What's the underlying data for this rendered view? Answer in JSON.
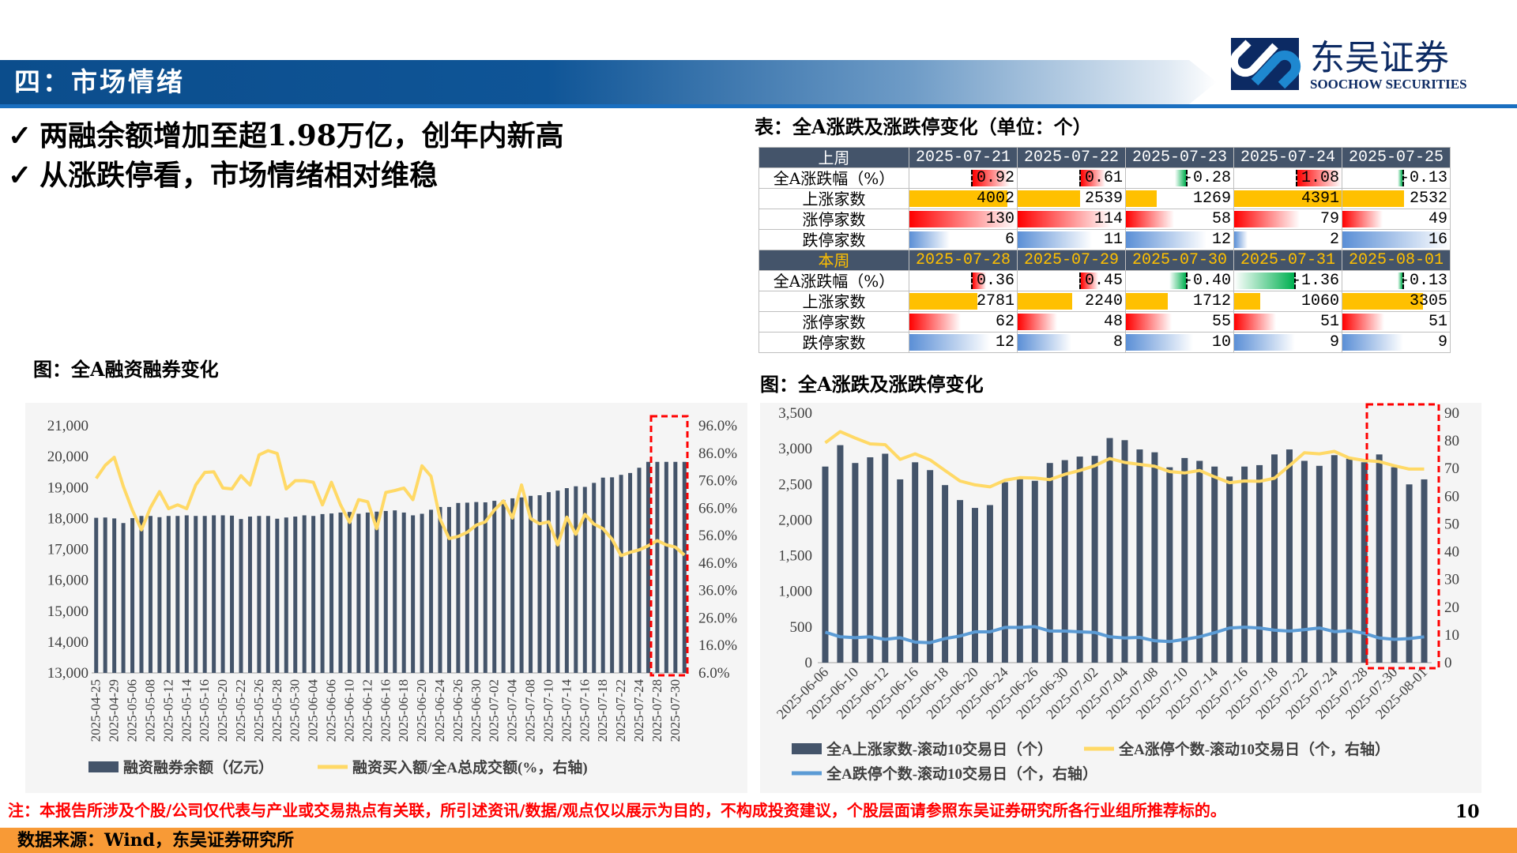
{
  "header": {
    "title": "四：市场情绪",
    "brand_cn": "东吴证券",
    "brand_en": "SOOCHOW SECURITIES",
    "brand_colors": {
      "dark": "#0c2a63",
      "light": "#1e88d0"
    }
  },
  "bullets": [
    {
      "icon": "check-icon",
      "text": "两融余额增加至超1.98万亿，创年内新高"
    },
    {
      "icon": "check-icon",
      "text": "从涨跌停看，市场情绪相对维稳"
    }
  ],
  "table": {
    "title": "表：全A涨跌及涨跌停变化（单位：个）",
    "row_labels": [
      "全A涨跌幅（%）",
      "上涨家数",
      "涨停家数",
      "跌停家数"
    ],
    "colors": {
      "header_bg": "#44546a",
      "current_week_text": "#ffc000",
      "up_bar": "#ffc000",
      "pos_pct": "#ff0000",
      "neg_pct": "#00b050",
      "limit_up": "#ff0000",
      "limit_down": "#5b8fd6"
    },
    "weeks": [
      {
        "label": "上周",
        "dates": [
          "2025-07-21",
          "2025-07-22",
          "2025-07-23",
          "2025-07-24",
          "2025-07-25"
        ],
        "pct": [
          "0.92",
          "0.61",
          "-0.28",
          "1.08",
          "-0.13"
        ],
        "up": [
          "4002",
          "2539",
          "1269",
          "4391",
          "2532"
        ],
        "limit_up": [
          "130",
          "114",
          "58",
          "79",
          "49"
        ],
        "limit_down": [
          "6",
          "11",
          "12",
          "2",
          "16"
        ]
      },
      {
        "label": "本周",
        "dates": [
          "2025-07-28",
          "2025-07-29",
          "2025-07-30",
          "2025-07-31",
          "2025-08-01"
        ],
        "pct": [
          "0.36",
          "0.45",
          "-0.40",
          "-1.36",
          "-0.13"
        ],
        "up": [
          "2781",
          "2240",
          "1712",
          "1060",
          "3305"
        ],
        "limit_up": [
          "62",
          "48",
          "55",
          "51",
          "51"
        ],
        "limit_down": [
          "12",
          "8",
          "10",
          "9",
          "9"
        ]
      }
    ]
  },
  "chart_data": [
    {
      "type": "bar+line",
      "title": "图：全A融资融券变化",
      "x_tick_labels": [
        "2025-04-25",
        "2025-04-29",
        "2025-05-06",
        "2025-05-08",
        "2025-05-12",
        "2025-05-14",
        "2025-05-16",
        "2025-05-20",
        "2025-05-22",
        "2025-05-26",
        "2025-05-28",
        "2025-05-30",
        "2025-06-04",
        "2025-06-06",
        "2025-06-10",
        "2025-06-12",
        "2025-06-16",
        "2025-06-18",
        "2025-06-20",
        "2025-06-24",
        "2025-06-26",
        "2025-06-30",
        "2025-07-02",
        "2025-07-04",
        "2025-07-08",
        "2025-07-10",
        "2025-07-14",
        "2025-07-16",
        "2025-07-18",
        "2025-07-22",
        "2025-07-24",
        "2025-07-28",
        "2025-07-30"
      ],
      "y_left": {
        "range": [
          13000,
          21000
        ],
        "ticks": [
          "13,000",
          "14,000",
          "15,000",
          "16,000",
          "17,000",
          "18,000",
          "19,000",
          "20,000",
          "21,000"
        ]
      },
      "y_right": {
        "range": [
          6,
          96
        ],
        "ticks": [
          "6.0%",
          "16.0%",
          "26.0%",
          "36.0%",
          "46.0%",
          "56.0%",
          "66.0%",
          "76.0%",
          "86.0%",
          "96.0%"
        ]
      },
      "series": [
        {
          "name": "融资融券余额（亿元）",
          "type": "bar",
          "axis": "left",
          "color": "#44546a",
          "values": [
            18020,
            18030,
            18000,
            17850,
            18010,
            18080,
            18080,
            18040,
            18080,
            18080,
            18100,
            18080,
            18080,
            18100,
            18100,
            18090,
            17980,
            18060,
            18080,
            18080,
            17990,
            18030,
            18060,
            18100,
            18080,
            18140,
            18160,
            18190,
            18210,
            18150,
            18190,
            18220,
            18240,
            18260,
            18190,
            18100,
            18150,
            18280,
            18370,
            18370,
            18500,
            18510,
            18530,
            18520,
            18570,
            18590,
            18650,
            18680,
            18730,
            18750,
            18850,
            18900,
            18980,
            19040,
            19020,
            19150,
            19320,
            19330,
            19410,
            19470,
            19640,
            19830,
            19830,
            19830,
            19830,
            19830
          ]
        },
        {
          "name": "融资买入额/全A总成交额(%，右轴)",
          "type": "line",
          "axis": "right",
          "color": "#ffd966",
          "values": [
            76.8,
            81.6,
            84.5,
            73.9,
            65.3,
            58.1,
            66.2,
            72.0,
            65.8,
            67.2,
            65.8,
            74.4,
            79.0,
            79.2,
            73.3,
            73.0,
            77.8,
            74.4,
            85.4,
            86.9,
            85.9,
            73.0,
            76.0,
            76.0,
            75.4,
            67.2,
            75.4,
            67.2,
            60.8,
            69.1,
            68.3,
            58.5,
            71.7,
            72.4,
            73.3,
            69.1,
            81.4,
            77.6,
            62.0,
            54.9,
            55.7,
            57.2,
            59.8,
            61.0,
            65.3,
            68.6,
            62.4,
            74.4,
            62.2,
            60.3,
            61.0,
            52.6,
            62.7,
            56.5,
            63.7,
            60.2,
            58.5,
            54.7,
            48.7,
            49.9,
            50.8,
            52.3,
            54.2,
            52.6,
            51.8,
            48.9
          ]
        }
      ],
      "highlight": {
        "style": "red-dashed-box",
        "color": "#ff0000",
        "covers": "last 4 bars"
      },
      "legend": "bottom",
      "grid": false
    },
    {
      "type": "bar+line",
      "title": "图：全A涨跌及涨跌停变化",
      "x_tick_labels": [
        "2025-06-06",
        "2025-06-10",
        "2025-06-12",
        "2025-06-16",
        "2025-06-18",
        "2025-06-20",
        "2025-06-24",
        "2025-06-26",
        "2025-06-30",
        "2025-07-02",
        "2025-07-04",
        "2025-07-08",
        "2025-07-10",
        "2025-07-14",
        "2025-07-16",
        "2025-07-18",
        "2025-07-22",
        "2025-07-24",
        "2025-07-28",
        "2025-07-30",
        "2025-08-01"
      ],
      "y_left": {
        "range": [
          0,
          3500
        ],
        "ticks": [
          "0",
          "500",
          "1,000",
          "1,500",
          "2,000",
          "2,500",
          "3,000",
          "3,500"
        ]
      },
      "y_right": {
        "range": [
          0,
          90
        ],
        "ticks": [
          "0",
          "10",
          "20",
          "30",
          "40",
          "50",
          "60",
          "70",
          "80",
          "90"
        ]
      },
      "series": [
        {
          "name": "全A上涨家数-滚动10交易日（个）",
          "type": "bar",
          "axis": "left",
          "color": "#44546a",
          "values": [
            2750,
            3050,
            2800,
            2880,
            2930,
            2570,
            2810,
            2700,
            2490,
            2280,
            2170,
            2210,
            2530,
            2600,
            2550,
            2800,
            2840,
            2890,
            2900,
            3150,
            3120,
            2990,
            2950,
            2740,
            2870,
            2830,
            2750,
            2610,
            2750,
            2770,
            2920,
            2990,
            2830,
            2760,
            2910,
            2860,
            2810,
            2920,
            2740,
            2500,
            2570
          ]
        },
        {
          "name": "全A涨停个数-滚动10交易日（个，右轴）",
          "type": "line",
          "axis": "right",
          "color": "#ffd966",
          "values": [
            79.3,
            83.3,
            81.0,
            78.9,
            78.6,
            73.3,
            75.3,
            73.1,
            69.3,
            65.5,
            64.1,
            63.4,
            65.8,
            66.7,
            66.6,
            66.0,
            67.9,
            69.3,
            71.0,
            73.6,
            72.2,
            71.5,
            70.8,
            68.9,
            68.4,
            69.3,
            67.0,
            64.9,
            65.5,
            65.4,
            66.5,
            71.0,
            75.7,
            75.3,
            76.2,
            73.8,
            72.9,
            72.5,
            71.0,
            69.8,
            69.8
          ]
        },
        {
          "name": "全A跌停个数-滚动10交易日（个，右轴）",
          "type": "line",
          "axis": "right",
          "color": "#5b9bd5",
          "values": [
            11.0,
            9.3,
            9.0,
            9.3,
            8.4,
            9.0,
            7.4,
            7.2,
            8.7,
            9.6,
            11.1,
            11.1,
            12.7,
            12.7,
            13.0,
            11.4,
            11.4,
            11.1,
            10.9,
            9.3,
            8.9,
            9.1,
            7.9,
            7.6,
            8.4,
            9.3,
            10.8,
            12.5,
            12.8,
            12.5,
            11.7,
            11.4,
            11.9,
            12.5,
            11.2,
            11.5,
            10.6,
            8.9,
            8.4,
            8.7,
            9.3
          ]
        }
      ],
      "highlight": {
        "style": "red-dashed-box",
        "color": "#ff0000",
        "covers": "last 5 bars"
      },
      "legend": "bottom",
      "grid": false
    }
  ],
  "footer": {
    "note": "注：本报告所涉及个股/公司仅代表与产业或交易热点有关联，所引述资讯/数据/观点仅以展示为目的，不构成投资建议，个股层面请参照东吴证券研究所各行业组所推荐标的。",
    "page": "10",
    "source": "数据来源：Wind，东吴证券研究所",
    "source_bar_color": "#f89a36"
  }
}
